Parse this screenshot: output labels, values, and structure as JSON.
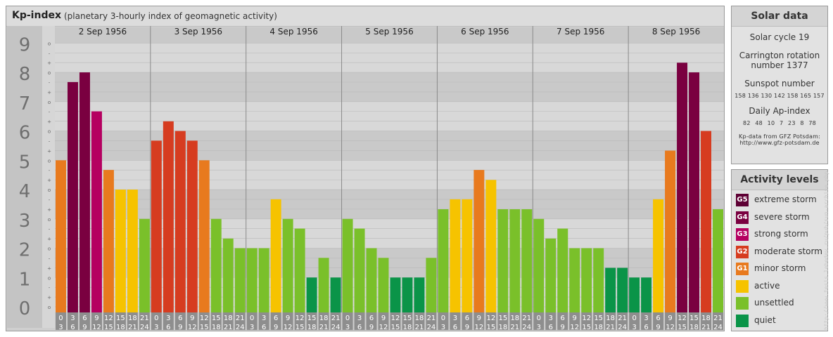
{
  "header": {
    "title": "Kp-index",
    "subtitle": "(planetary 3-hourly index of geomagnetic activity)"
  },
  "chart_data": {
    "type": "bar",
    "title": "Kp-index",
    "subtitle": "(planetary 3-hourly index of geomagnetic activity)",
    "ylim": [
      0,
      9
    ],
    "y_ticks": [
      "0",
      "1",
      "2",
      "3",
      "4",
      "5",
      "6",
      "7",
      "8",
      "9"
    ],
    "y_minor_ticks": [
      "o",
      "+",
      "-"
    ],
    "days": [
      "2 Sep 1956",
      "3 Sep 1956",
      "4 Sep 1956",
      "5 Sep 1956",
      "6 Sep 1956",
      "7 Sep 1956",
      "8 Sep 1956"
    ],
    "interval_start": [
      "0",
      "3",
      "6",
      "9",
      "12",
      "15",
      "18",
      "21"
    ],
    "interval_end": [
      "3",
      "6",
      "9",
      "12",
      "15",
      "18",
      "21",
      "24"
    ],
    "values": [
      [
        5.0,
        7.67,
        8.0,
        6.67,
        4.67,
        4.0,
        4.0,
        3.0
      ],
      [
        5.67,
        6.33,
        6.0,
        5.67,
        5.0,
        3.0,
        2.33,
        2.0
      ],
      [
        2.0,
        2.0,
        3.67,
        3.0,
        2.67,
        1.0,
        1.67,
        1.0
      ],
      [
        3.0,
        2.67,
        2.0,
        1.67,
        1.0,
        1.0,
        1.0,
        1.67
      ],
      [
        3.33,
        3.67,
        3.67,
        4.67,
        4.33,
        3.33,
        3.33,
        3.33
      ],
      [
        3.0,
        2.33,
        2.67,
        2.0,
        2.0,
        2.0,
        1.33,
        1.33
      ],
      [
        1.0,
        1.0,
        3.67,
        5.33,
        8.33,
        8.0,
        6.0,
        3.33
      ]
    ],
    "grid": true
  },
  "solar": {
    "title": "Solar data",
    "cycle": "Solar cycle 19",
    "carrington_1": "Carrington rotation",
    "carrington_2": "number 1377",
    "sunspot_label": "Sunspot number",
    "sunspot_values": "158 136 130 142 158 165 157",
    "ap_label": "Daily Ap-index",
    "ap_values": "82  48  10  7  23  8  78",
    "source_1": "Kp-data from GFZ Potsdam:",
    "source_2": "http://www.gfz-potsdam.de"
  },
  "activity": {
    "title": "Activity levels",
    "levels": [
      {
        "code": "G5",
        "label": "extreme storm",
        "color": "#5e0034"
      },
      {
        "code": "G4",
        "label": "severe storm",
        "color": "#7a0040"
      },
      {
        "code": "G3",
        "label": "strong storm",
        "color": "#b50060"
      },
      {
        "code": "G2",
        "label": "moderate storm",
        "color": "#d63c20"
      },
      {
        "code": "G1",
        "label": "minor storm",
        "color": "#e87a1e"
      },
      {
        "code": "",
        "label": "active",
        "color": "#f6c300"
      },
      {
        "code": "",
        "label": "unsettled",
        "color": "#7ac02a"
      },
      {
        "code": "",
        "label": "quiet",
        "color": "#0a9448"
      }
    ]
  },
  "credit": "http://www.tesis.lebedev.ru/pub/sun-archive.php"
}
